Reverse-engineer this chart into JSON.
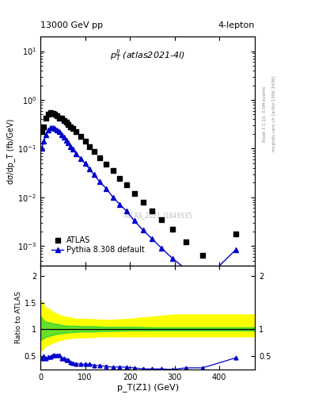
{
  "title_left": "13000 GeV pp",
  "title_right": "4-lepton",
  "annotation": "$p_T^{ll}$ (atlas2021-4l)",
  "watermark": "ATLAS_2021_I1849535",
  "right_label1": "Rivet 3.1.10, 3.5M events",
  "right_label2": "mcplots.cern.ch [arXiv:1306.3436]",
  "ylabel_main": "dσ/dp_T (fb/GeV)",
  "ylabel_ratio": "Ratio to ATLAS",
  "xlabel": "p_T(Z1) (GeV)",
  "ylim_main": [
    0.0004,
    20
  ],
  "xlim": [
    0,
    480
  ],
  "atlas_x": [
    2.5,
    7.5,
    12.5,
    17.5,
    22.5,
    27.5,
    32.5,
    37.5,
    42.5,
    47.5,
    52.5,
    57.5,
    62.5,
    67.5,
    72.5,
    80,
    90,
    100,
    110,
    120,
    132.5,
    147.5,
    162.5,
    177.5,
    192.5,
    210,
    230,
    250,
    270,
    295,
    325,
    362.5,
    437.5
  ],
  "atlas_y": [
    0.22,
    0.28,
    0.42,
    0.5,
    0.55,
    0.52,
    0.5,
    0.47,
    0.43,
    0.42,
    0.38,
    0.35,
    0.31,
    0.28,
    0.26,
    0.22,
    0.18,
    0.14,
    0.11,
    0.088,
    0.065,
    0.048,
    0.035,
    0.024,
    0.018,
    0.012,
    0.008,
    0.0053,
    0.0035,
    0.0022,
    0.0012,
    0.00065,
    0.0018
  ],
  "pythia_x": [
    2.5,
    7.5,
    12.5,
    17.5,
    22.5,
    27.5,
    32.5,
    37.5,
    42.5,
    47.5,
    52.5,
    57.5,
    62.5,
    67.5,
    72.5,
    80,
    90,
    100,
    110,
    120,
    132.5,
    147.5,
    162.5,
    177.5,
    192.5,
    210,
    230,
    250,
    270,
    295,
    325,
    362.5,
    437.5
  ],
  "pythia_y": [
    0.1,
    0.14,
    0.19,
    0.24,
    0.27,
    0.27,
    0.26,
    0.24,
    0.22,
    0.19,
    0.17,
    0.15,
    0.13,
    0.11,
    0.097,
    0.079,
    0.063,
    0.049,
    0.038,
    0.029,
    0.021,
    0.015,
    0.01,
    0.0072,
    0.0052,
    0.0033,
    0.0021,
    0.0014,
    0.00092,
    0.00056,
    0.00034,
    0.00018,
    0.00085
  ],
  "ratio_x": [
    2.5,
    7.5,
    12.5,
    17.5,
    22.5,
    27.5,
    32.5,
    37.5,
    42.5,
    47.5,
    52.5,
    57.5,
    62.5,
    67.5,
    72.5,
    80,
    90,
    100,
    110,
    120,
    132.5,
    147.5,
    162.5,
    177.5,
    192.5,
    210,
    230,
    250,
    270,
    295,
    325,
    362.5,
    437.5
  ],
  "ratio_y": [
    0.45,
    0.5,
    0.45,
    0.48,
    0.49,
    0.52,
    0.52,
    0.51,
    0.51,
    0.45,
    0.45,
    0.43,
    0.42,
    0.39,
    0.37,
    0.36,
    0.35,
    0.35,
    0.35,
    0.33,
    0.32,
    0.31,
    0.29,
    0.3,
    0.29,
    0.28,
    0.26,
    0.26,
    0.26,
    0.25,
    0.28,
    0.28,
    0.47
  ],
  "band_x": [
    0,
    5,
    10,
    20,
    30,
    40,
    50,
    60,
    70,
    80,
    90,
    100,
    120,
    140,
    160,
    200,
    250,
    300,
    400,
    480
  ],
  "band_green_lo": [
    0.8,
    0.82,
    0.85,
    0.88,
    0.9,
    0.92,
    0.93,
    0.94,
    0.95,
    0.95,
    0.96,
    0.96,
    0.96,
    0.97,
    0.97,
    0.98,
    0.98,
    0.98,
    0.98,
    0.98
  ],
  "band_green_hi": [
    1.25,
    1.2,
    1.15,
    1.13,
    1.11,
    1.1,
    1.08,
    1.07,
    1.07,
    1.07,
    1.06,
    1.06,
    1.06,
    1.05,
    1.05,
    1.05,
    1.04,
    1.04,
    1.04,
    1.04
  ],
  "band_yellow_lo": [
    0.6,
    0.62,
    0.68,
    0.72,
    0.76,
    0.79,
    0.81,
    0.83,
    0.84,
    0.85,
    0.85,
    0.85,
    0.86,
    0.87,
    0.87,
    0.87,
    0.87,
    0.87,
    0.87,
    0.87
  ],
  "band_yellow_hi": [
    1.55,
    1.5,
    1.42,
    1.38,
    1.32,
    1.28,
    1.25,
    1.23,
    1.22,
    1.2,
    1.2,
    1.2,
    1.19,
    1.18,
    1.18,
    1.2,
    1.24,
    1.28,
    1.28,
    1.28
  ],
  "atlas_color": "black",
  "pythia_color": "#0000cc",
  "green_color": "#00cc44",
  "yellow_color": "#ffff00"
}
